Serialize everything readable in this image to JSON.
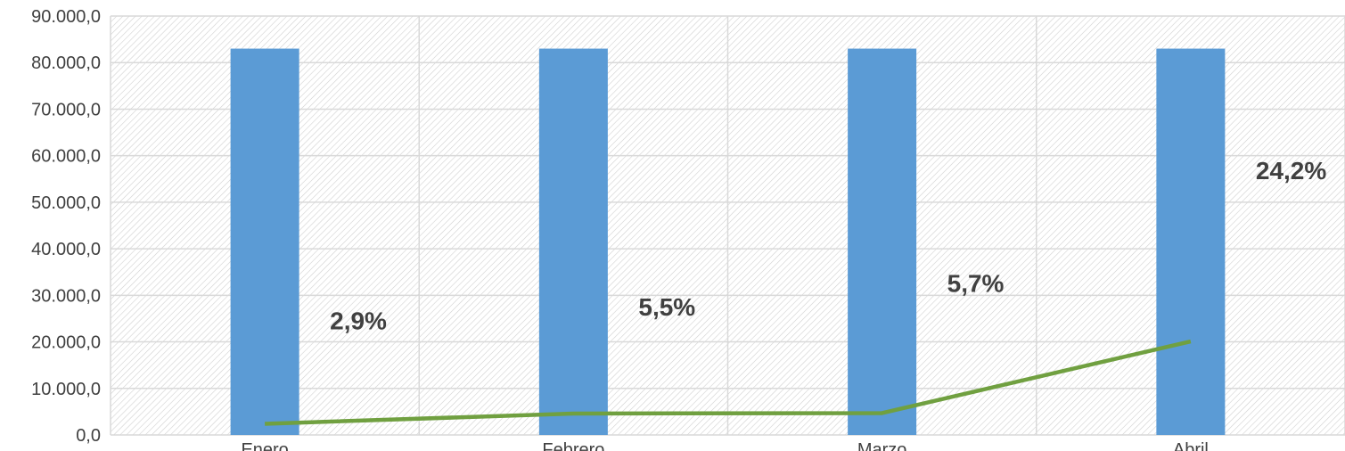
{
  "chart_data": {
    "type": "bar",
    "categories": [
      "Enero",
      "Febrero",
      "Marzo",
      "Abril"
    ],
    "series": [
      {
        "type": "bar",
        "values": [
          83000,
          83000,
          83000,
          83000
        ],
        "color": "#5b9bd5"
      },
      {
        "type": "line",
        "values": [
          2400,
          4600,
          4700,
          20100
        ],
        "color": "#70a040"
      }
    ],
    "data_labels": [
      "2,9%",
      "5,5%",
      "5,7%",
      "24,2%"
    ],
    "y_ticks": [
      "0,0",
      "10.000,0",
      "20.000,0",
      "30.000,0",
      "40.000,0",
      "50.000,0",
      "60.000,0",
      "70.000,0",
      "80.000,0",
      "90.000,0"
    ],
    "ylim": [
      0,
      90000
    ],
    "grid": true,
    "plot_background": "hatched",
    "colors": {
      "grid": "#d9d9d9",
      "hatch": "#d0d0d0",
      "text": "#404040"
    }
  }
}
